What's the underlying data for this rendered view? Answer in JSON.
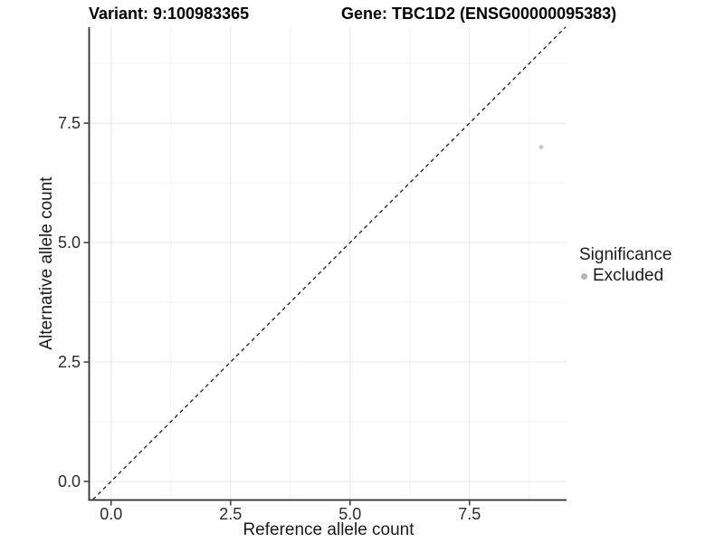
{
  "header": {
    "variant_title": "Variant: 9:100983365",
    "gene_title": "Gene: TBC1D2 (ENSG00000095383)"
  },
  "chart_data": {
    "type": "scatter",
    "xlabel": "Reference allele count",
    "ylabel": "Alternative allele count",
    "xlim": [
      -0.45,
      9.53
    ],
    "ylim": [
      -0.38,
      9.51
    ],
    "x_ticks": [
      0,
      2.5,
      5,
      7.5
    ],
    "x_tick_labels": [
      "0.0",
      "2.5",
      "5.0",
      "7.5"
    ],
    "y_ticks": [
      0,
      2.5,
      5,
      7.5
    ],
    "y_tick_labels": [
      "0.0",
      "2.5",
      "5.0",
      "7.5"
    ],
    "x_minor_ticks": [
      1.25,
      3.75,
      6.25,
      8.75
    ],
    "y_minor_ticks": [
      1.25,
      3.75,
      6.25,
      8.75
    ],
    "grid": "major+minor",
    "colors": {
      "major_grid": "#e8e8e8",
      "minor_grid": "#f3f3f3",
      "axis_line": "#2e2e2e",
      "tick_text": "#2b2b2b",
      "reference_line": "#1a1a1a"
    },
    "reference_line": {
      "slope": 1,
      "intercept": 0,
      "style": "dashed"
    },
    "series": [
      {
        "name": "Excluded",
        "color": "#c4c4c4",
        "points": [
          {
            "x": 9,
            "y": 7
          }
        ]
      }
    ],
    "legend": {
      "title": "Significance",
      "position": "right",
      "items": [
        {
          "label": "Excluded",
          "color": "#b5b5b5"
        }
      ]
    }
  }
}
